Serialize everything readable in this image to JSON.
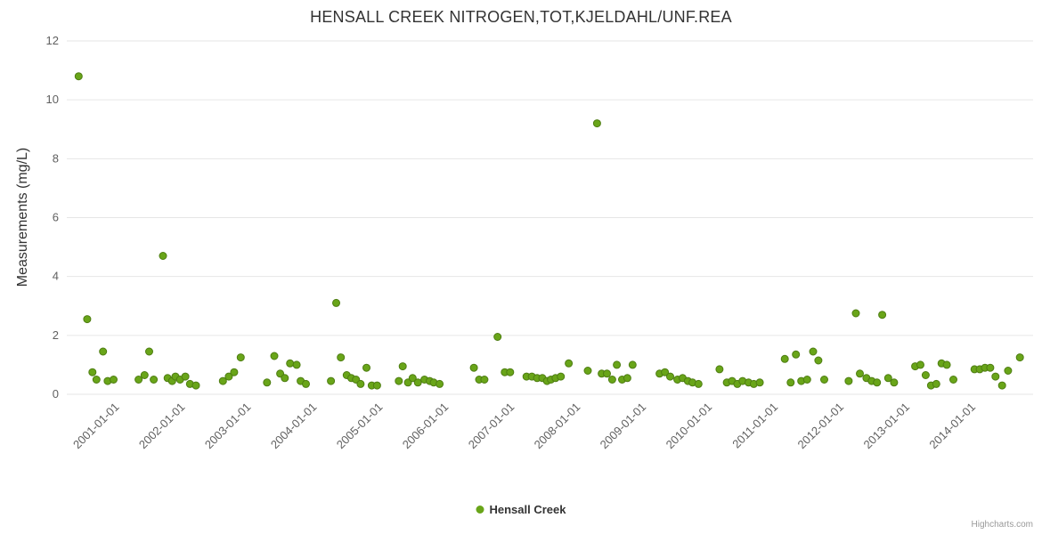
{
  "chart_data": {
    "type": "scatter",
    "title": "HENSALL CREEK NITROGEN,TOT,KJELDAHL/UNF.REA",
    "y_axis_title": "Measurements (mg/L)",
    "ylim": [
      0,
      12
    ],
    "y_ticks": [
      0,
      2,
      4,
      6,
      8,
      10,
      12
    ],
    "xlim": [
      2000.25,
      2014.92
    ],
    "x_ticks": [
      [
        2001,
        "2001-01-01"
      ],
      [
        2002,
        "2002-01-01"
      ],
      [
        2003,
        "2003-01-01"
      ],
      [
        2004,
        "2004-01-01"
      ],
      [
        2005,
        "2005-01-01"
      ],
      [
        2006,
        "2006-01-01"
      ],
      [
        2007,
        "2007-01-01"
      ],
      [
        2008,
        "2008-01-01"
      ],
      [
        2009,
        "2009-01-01"
      ],
      [
        2010,
        "2010-01-01"
      ],
      [
        2011,
        "2011-01-01"
      ],
      [
        2012,
        "2012-01-01"
      ],
      [
        2013,
        "2013-01-01"
      ],
      [
        2014,
        "2014-01-01"
      ]
    ],
    "grid": "horizontal",
    "grid_color": "#e6e6e6",
    "tick_label_color": "#606060",
    "legend_position": "bottom-center",
    "credits": "Highcharts.com",
    "series": [
      {
        "name": "Hensall Creek",
        "color": "#69a519",
        "stroke_color": "#4e7d12",
        "points": [
          [
            2000.43,
            10.8
          ],
          [
            2000.56,
            2.55
          ],
          [
            2000.64,
            0.75
          ],
          [
            2000.7,
            0.5
          ],
          [
            2000.8,
            1.45
          ],
          [
            2000.87,
            0.45
          ],
          [
            2000.96,
            0.5
          ],
          [
            2001.34,
            0.5
          ],
          [
            2001.43,
            0.65
          ],
          [
            2001.5,
            1.45
          ],
          [
            2001.57,
            0.5
          ],
          [
            2001.71,
            4.7
          ],
          [
            2001.78,
            0.55
          ],
          [
            2001.85,
            0.45
          ],
          [
            2001.9,
            0.6
          ],
          [
            2001.97,
            0.5
          ],
          [
            2002.05,
            0.6
          ],
          [
            2002.12,
            0.35
          ],
          [
            2002.21,
            0.3
          ],
          [
            2002.62,
            0.45
          ],
          [
            2002.71,
            0.6
          ],
          [
            2002.79,
            0.75
          ],
          [
            2002.89,
            1.25
          ],
          [
            2003.29,
            0.4
          ],
          [
            2003.4,
            1.3
          ],
          [
            2003.49,
            0.7
          ],
          [
            2003.56,
            0.55
          ],
          [
            2003.64,
            1.05
          ],
          [
            2003.74,
            1.0
          ],
          [
            2003.8,
            0.45
          ],
          [
            2003.88,
            0.35
          ],
          [
            2004.26,
            0.45
          ],
          [
            2004.34,
            3.1
          ],
          [
            2004.41,
            1.25
          ],
          [
            2004.5,
            0.65
          ],
          [
            2004.57,
            0.55
          ],
          [
            2004.64,
            0.5
          ],
          [
            2004.71,
            0.35
          ],
          [
            2004.8,
            0.9
          ],
          [
            2004.88,
            0.3
          ],
          [
            2004.96,
            0.3
          ],
          [
            2005.29,
            0.45
          ],
          [
            2005.35,
            0.95
          ],
          [
            2005.43,
            0.4
          ],
          [
            2005.5,
            0.55
          ],
          [
            2005.58,
            0.4
          ],
          [
            2005.68,
            0.5
          ],
          [
            2005.76,
            0.45
          ],
          [
            2005.82,
            0.4
          ],
          [
            2005.91,
            0.35
          ],
          [
            2006.43,
            0.9
          ],
          [
            2006.51,
            0.5
          ],
          [
            2006.59,
            0.5
          ],
          [
            2006.79,
            1.95
          ],
          [
            2006.9,
            0.75
          ],
          [
            2006.98,
            0.75
          ],
          [
            2007.23,
            0.6
          ],
          [
            2007.31,
            0.6
          ],
          [
            2007.39,
            0.55
          ],
          [
            2007.47,
            0.55
          ],
          [
            2007.54,
            0.45
          ],
          [
            2007.6,
            0.5
          ],
          [
            2007.67,
            0.55
          ],
          [
            2007.75,
            0.6
          ],
          [
            2007.87,
            1.05
          ],
          [
            2008.16,
            0.8
          ],
          [
            2008.3,
            9.2
          ],
          [
            2008.37,
            0.7
          ],
          [
            2008.45,
            0.7
          ],
          [
            2008.53,
            0.5
          ],
          [
            2008.6,
            1.0
          ],
          [
            2008.68,
            0.5
          ],
          [
            2008.76,
            0.55
          ],
          [
            2008.84,
            1.0
          ],
          [
            2009.25,
            0.7
          ],
          [
            2009.33,
            0.75
          ],
          [
            2009.41,
            0.6
          ],
          [
            2009.52,
            0.5
          ],
          [
            2009.6,
            0.55
          ],
          [
            2009.68,
            0.45
          ],
          [
            2009.75,
            0.4
          ],
          [
            2009.84,
            0.35
          ],
          [
            2010.16,
            0.85
          ],
          [
            2010.27,
            0.4
          ],
          [
            2010.35,
            0.45
          ],
          [
            2010.43,
            0.35
          ],
          [
            2010.51,
            0.45
          ],
          [
            2010.6,
            0.4
          ],
          [
            2010.68,
            0.35
          ],
          [
            2010.77,
            0.4
          ],
          [
            2011.15,
            1.2
          ],
          [
            2011.24,
            0.4
          ],
          [
            2011.32,
            1.35
          ],
          [
            2011.4,
            0.45
          ],
          [
            2011.49,
            0.5
          ],
          [
            2011.58,
            1.45
          ],
          [
            2011.66,
            1.15
          ],
          [
            2011.75,
            0.5
          ],
          [
            2012.12,
            0.45
          ],
          [
            2012.23,
            2.75
          ],
          [
            2012.29,
            0.7
          ],
          [
            2012.39,
            0.55
          ],
          [
            2012.47,
            0.45
          ],
          [
            2012.55,
            0.4
          ],
          [
            2012.63,
            2.7
          ],
          [
            2012.72,
            0.55
          ],
          [
            2012.81,
            0.4
          ],
          [
            2013.13,
            0.95
          ],
          [
            2013.21,
            1.0
          ],
          [
            2013.29,
            0.65
          ],
          [
            2013.37,
            0.3
          ],
          [
            2013.45,
            0.35
          ],
          [
            2013.53,
            1.05
          ],
          [
            2013.61,
            1.0
          ],
          [
            2013.71,
            0.5
          ],
          [
            2014.03,
            0.85
          ],
          [
            2014.11,
            0.85
          ],
          [
            2014.19,
            0.9
          ],
          [
            2014.27,
            0.9
          ],
          [
            2014.35,
            0.6
          ],
          [
            2014.45,
            0.3
          ],
          [
            2014.54,
            0.8
          ],
          [
            2014.72,
            1.25
          ]
        ]
      }
    ]
  }
}
